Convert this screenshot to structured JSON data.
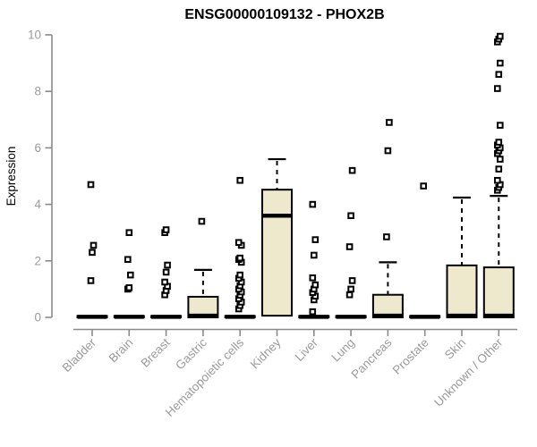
{
  "style": {
    "background": "#ffffff",
    "box_fill": "#EEE8CD",
    "box_stroke": "#000000",
    "axis_color": "#8A8A8A",
    "label_color": "#9B9B9B",
    "title_color": "#000000"
  },
  "chart_data": {
    "type": "boxplot",
    "title": "ENSG00000109132 - PHOX2B",
    "ylabel": "Expression",
    "xlabel": "",
    "ylim": [
      0,
      10
    ],
    "yticks": [
      0,
      2,
      4,
      6,
      8,
      10
    ],
    "grid": false,
    "categories": [
      "Bladder",
      "Brain",
      "Breast",
      "Gastric",
      "Hematopoietic cells",
      "Kidney",
      "Liver",
      "Lung",
      "Pancreas",
      "Prostate",
      "Skin",
      "Unknown / Other"
    ],
    "series": [
      {
        "name": "Bladder",
        "whisker_low": 0,
        "q1": 0,
        "median": 0.02,
        "q3": 0.05,
        "whisker_high": 0.05,
        "outliers": [
          1.3,
          2.3,
          2.55,
          4.7
        ]
      },
      {
        "name": "Brain",
        "whisker_low": 0,
        "q1": 0,
        "median": 0.02,
        "q3": 0.05,
        "whisker_high": 0.05,
        "outliers": [
          1.0,
          1.05,
          1.5,
          2.05,
          3.0
        ]
      },
      {
        "name": "Breast",
        "whisker_low": 0,
        "q1": 0,
        "median": 0.02,
        "q3": 0.05,
        "whisker_high": 0.05,
        "outliers": [
          0.8,
          0.95,
          1.1,
          1.25,
          1.6,
          1.85,
          3.0,
          3.1
        ]
      },
      {
        "name": "Gastric",
        "whisker_low": 0,
        "q1": 0,
        "median": 0.06,
        "q3": 0.73,
        "whisker_high": 1.68,
        "outliers": [
          3.4
        ]
      },
      {
        "name": "Hematopoietic cells",
        "whisker_low": 0,
        "q1": 0,
        "median": 0.02,
        "q3": 0.05,
        "whisker_high": 0.05,
        "outliers": [
          0.3,
          0.42,
          0.54,
          0.66,
          0.78,
          0.9,
          1.0,
          1.12,
          1.25,
          1.38,
          1.5,
          1.95,
          2.05,
          2.1,
          2.55,
          2.65,
          4.85
        ]
      },
      {
        "name": "Kidney",
        "whisker_low": 0,
        "q1": 0.06,
        "median": 3.6,
        "q3": 4.52,
        "whisker_high": 5.6,
        "outliers": []
      },
      {
        "name": "Liver",
        "whisker_low": 0,
        "q1": 0,
        "median": 0.02,
        "q3": 0.05,
        "whisker_high": 0.05,
        "outliers": [
          0.2,
          0.62,
          0.75,
          0.88,
          1.0,
          1.15,
          1.4,
          2.2,
          2.75,
          4.0
        ]
      },
      {
        "name": "Lung",
        "whisker_low": 0,
        "q1": 0,
        "median": 0.02,
        "q3": 0.05,
        "whisker_high": 0.05,
        "outliers": [
          0.8,
          1.0,
          1.3,
          2.5,
          3.6,
          5.2
        ]
      },
      {
        "name": "Pancreas",
        "whisker_low": 0,
        "q1": 0,
        "median": 0.06,
        "q3": 0.8,
        "whisker_high": 1.95,
        "outliers": [
          2.85,
          5.9,
          6.9
        ]
      },
      {
        "name": "Prostate",
        "whisker_low": 0,
        "q1": 0,
        "median": 0.02,
        "q3": 0.05,
        "whisker_high": 0.05,
        "outliers": [
          4.65
        ]
      },
      {
        "name": "Skin",
        "whisker_low": 0,
        "q1": 0,
        "median": 0.06,
        "q3": 1.84,
        "whisker_high": 4.24,
        "outliers": []
      },
      {
        "name": "Unknown / Other",
        "whisker_low": 0,
        "q1": 0,
        "median": 0.06,
        "q3": 1.77,
        "whisker_high": 4.3,
        "outliers": [
          4.5,
          4.6,
          4.7,
          4.85,
          5.25,
          5.6,
          5.8,
          5.9,
          6.0,
          6.1,
          6.2,
          6.8,
          8.1,
          8.6,
          9.0,
          9.75,
          9.85,
          9.95
        ]
      }
    ]
  }
}
